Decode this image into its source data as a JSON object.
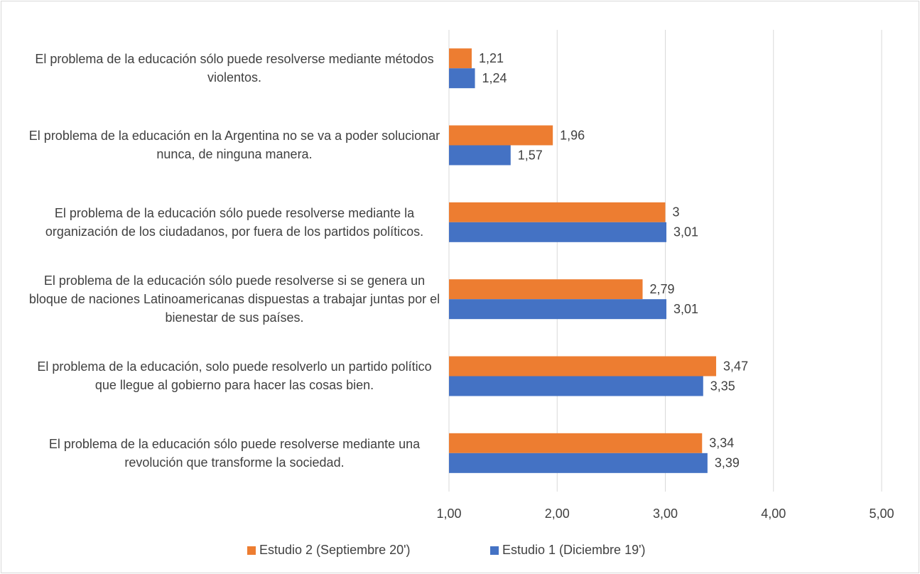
{
  "chart_data": {
    "type": "bar",
    "orientation": "horizontal",
    "categories": [
      "El problema de la educación sólo puede resolverse mediante métodos violentos.",
      "El problema de la educación en la Argentina no se va a poder solucionar nunca, de ninguna manera.",
      "El problema de la educación sólo puede resolverse mediante la organización de los ciudadanos, por fuera de los partidos políticos.",
      "El problema de la educación sólo puede resolverse si se genera un bloque de naciones Latinoamericanas dispuestas a trabajar juntas por el bienestar de sus países.",
      "El problema de la educación, solo puede resolverlo un partido político que llegue al gobierno para hacer las cosas bien.",
      "El problema de la educación sólo puede resolverse mediante una revolución que transforme la sociedad."
    ],
    "series": [
      {
        "name": "Estudio 2 (Septiembre 20')",
        "color": "#ed7d31",
        "values": [
          1.21,
          1.96,
          3,
          2.79,
          3.47,
          3.34
        ],
        "value_labels": [
          "1,21",
          "1,96",
          "3",
          "2,79",
          "3,47",
          "3,34"
        ]
      },
      {
        "name": "Estudio 1 (Diciembre 19')",
        "color": "#4472c4",
        "values": [
          1.24,
          1.57,
          3.01,
          3.01,
          3.35,
          3.39
        ],
        "value_labels": [
          "1,24",
          "1,57",
          "3,01",
          "3,01",
          "3,35",
          "3,39"
        ]
      }
    ],
    "xlim": [
      1,
      5
    ],
    "xticks": [
      {
        "value": 1,
        "label": "1,00"
      },
      {
        "value": 2,
        "label": "2,00"
      },
      {
        "value": 3,
        "label": "3,00"
      },
      {
        "value": 4,
        "label": "4,00"
      },
      {
        "value": 5,
        "label": "5,00"
      }
    ],
    "grid": true,
    "legend": "bottom"
  }
}
